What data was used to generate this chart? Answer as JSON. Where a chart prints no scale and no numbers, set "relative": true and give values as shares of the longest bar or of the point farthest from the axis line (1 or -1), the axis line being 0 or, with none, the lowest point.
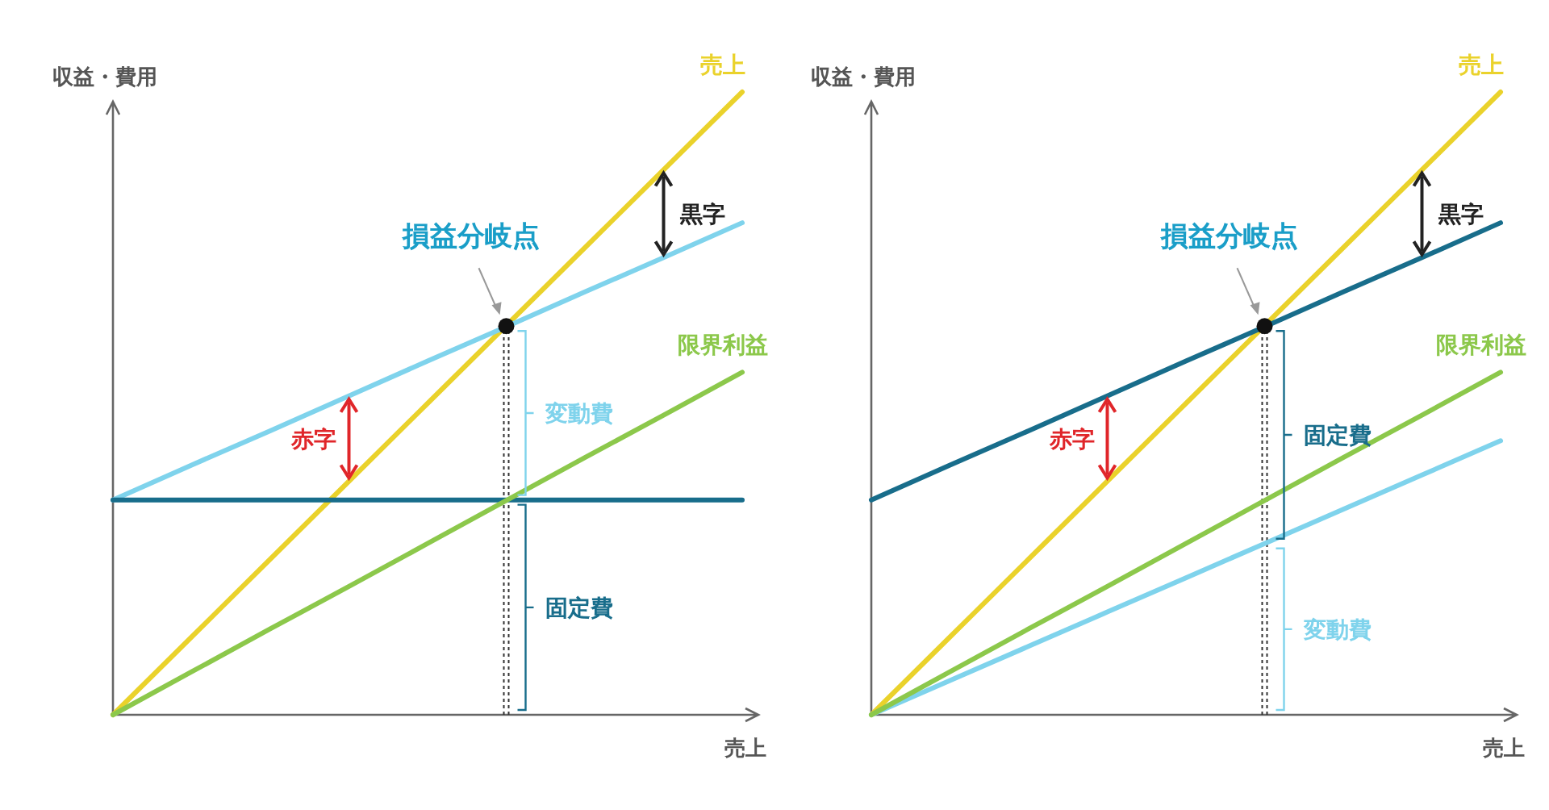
{
  "chart_data": [
    {
      "type": "line",
      "relative": true,
      "xlabel": "売上",
      "ylabel": "収益・費用",
      "categories": [
        null,
        null,
        null,
        null,
        null,
        null,
        null,
        null,
        null
      ],
      "series": [
        {
          "name": "売上",
          "color": "#ead22b",
          "values": [
            0,
            0.125,
            0.25,
            0.375,
            0.5,
            0.625,
            0.75,
            0.875,
            1
          ]
        },
        {
          "color": "#7fd3ec",
          "values": [
            0.345,
            0.401,
            0.456,
            0.512,
            0.568,
            0.623,
            0.679,
            0.734,
            0.79
          ]
        },
        {
          "color": "#186d8b",
          "values": [
            0.345,
            0.345,
            0.345,
            0.345,
            0.345,
            0.345,
            0.345,
            0.345,
            0.345
          ]
        },
        {
          "name": "限界利益",
          "color": "#8cc84b",
          "values": [
            0,
            0.069,
            0.138,
            0.206,
            0.275,
            0.344,
            0.413,
            0.481,
            0.55
          ]
        }
      ],
      "annotations": [
        "損益分岐点",
        "黒字",
        "赤字",
        "変動費",
        "固定費"
      ]
    },
    {
      "type": "line",
      "relative": true,
      "xlabel": "売上",
      "ylabel": "収益・費用",
      "categories": [
        null,
        null,
        null,
        null,
        null,
        null,
        null,
        null,
        null
      ],
      "series": [
        {
          "name": "売上",
          "color": "#ead22b",
          "values": [
            0,
            0.125,
            0.25,
            0.375,
            0.5,
            0.625,
            0.75,
            0.875,
            1
          ]
        },
        {
          "color": "#186d8b",
          "values": [
            0.345,
            0.401,
            0.456,
            0.512,
            0.568,
            0.623,
            0.679,
            0.734,
            0.79
          ]
        },
        {
          "color": "#7fd3ec",
          "values": [
            0,
            0.055,
            0.11,
            0.165,
            0.22,
            0.275,
            0.33,
            0.385,
            0.44
          ]
        },
        {
          "name": "限界利益",
          "color": "#8cc84b",
          "values": [
            0,
            0.069,
            0.138,
            0.206,
            0.275,
            0.344,
            0.413,
            0.481,
            0.55
          ]
        }
      ],
      "annotations": [
        "損益分岐点",
        "黒字",
        "赤字",
        "固定費",
        "変動費"
      ]
    }
  ]
}
